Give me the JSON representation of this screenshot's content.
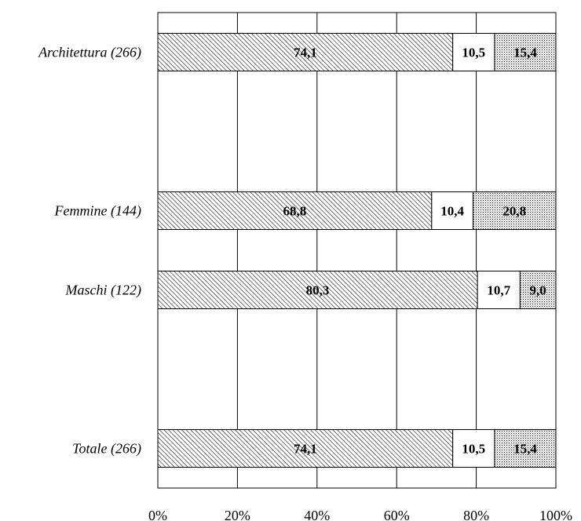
{
  "chart_data": {
    "type": "bar",
    "orientation": "horizontal",
    "stacked": true,
    "percent": true,
    "title": "",
    "xlabel": "",
    "ylabel": "",
    "xlim": [
      0,
      100
    ],
    "x_ticks": [
      "0%",
      "20%",
      "40%",
      "60%",
      "80%",
      "100%"
    ],
    "grid": true,
    "legend": "none",
    "rows": [
      {
        "label": "Architettura (266)",
        "values": [
          "74,1",
          "10,5",
          "15,4"
        ],
        "numeric": [
          74.1,
          10.5,
          15.4
        ]
      },
      {
        "label": "",
        "values": [],
        "numeric": []
      },
      {
        "label": "Femmine (144)",
        "values": [
          "68,8",
          "10,4",
          "20,8"
        ],
        "numeric": [
          68.8,
          10.4,
          20.8
        ]
      },
      {
        "label": "Maschi (122)",
        "values": [
          "80,3",
          "10,7",
          "9,0"
        ],
        "numeric": [
          80.3,
          10.7,
          9.0
        ]
      },
      {
        "label": "",
        "values": [],
        "numeric": []
      },
      {
        "label": "Totale (266)",
        "values": [
          "74,1",
          "10,5",
          "15,4"
        ],
        "numeric": [
          74.1,
          10.5,
          15.4
        ]
      }
    ],
    "series_fill": [
      "hatched",
      "white",
      "dotted"
    ]
  }
}
